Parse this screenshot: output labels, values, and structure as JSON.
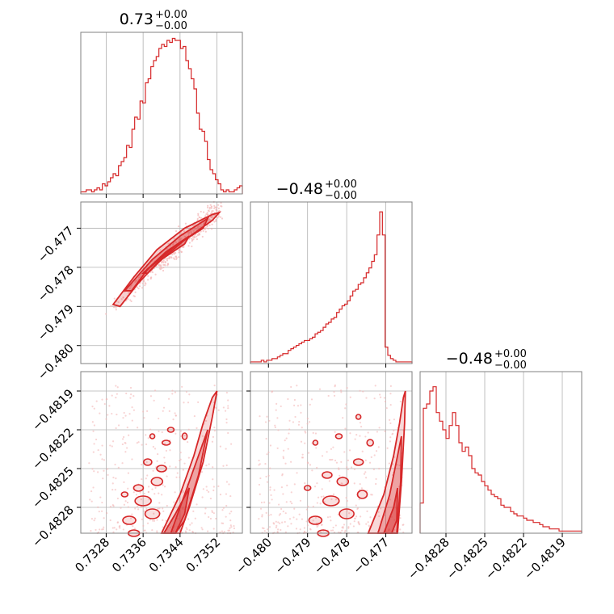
{
  "chart_data": {
    "type": "corner",
    "color": "#d62728",
    "light_color": "#f4b8b8",
    "grid": true,
    "parameters": [
      {
        "title_value": "0.73",
        "title_plus": "+0.00",
        "title_minus": "−0.00",
        "range": [
          0.73225,
          0.73575
        ],
        "ticks": [
          0.7328,
          0.7336,
          0.7344,
          0.7352
        ],
        "tick_labels": [
          "0.7328",
          "0.7336",
          "0.7344",
          "0.7352"
        ],
        "hist_edges": [
          0.73225,
          0.73575
        ],
        "hist_counts": [
          1,
          1,
          2,
          2,
          1,
          2,
          3,
          2,
          5,
          4,
          6,
          8,
          10,
          9,
          14,
          16,
          18,
          24,
          23,
          32,
          38,
          37,
          46,
          45,
          55,
          57,
          63,
          66,
          68,
          72,
          74,
          73,
          76,
          75,
          77,
          76,
          76,
          72,
          73,
          66,
          62,
          57,
          52,
          40,
          32,
          31,
          26,
          17,
          12,
          10,
          7,
          5,
          2,
          1,
          2,
          1,
          1,
          2,
          3,
          4
        ],
        "hist_ymax": 80
      },
      {
        "title_value": "−0.48",
        "title_plus": "+0.00",
        "title_minus": "−0.00",
        "range": [
          -0.48046,
          -0.47633
        ],
        "ticks": [
          -0.48,
          -0.479,
          -0.478,
          -0.477
        ],
        "tick_labels": [
          "−0.480",
          "−0.479",
          "−0.478",
          "−0.477"
        ],
        "hist_edges": [
          -0.48046,
          -0.47633
        ],
        "hist_counts": [
          1,
          1,
          1,
          1,
          2,
          1,
          2,
          2,
          3,
          3,
          4,
          5,
          6,
          6,
          8,
          9,
          10,
          11,
          12,
          13,
          14,
          14,
          15,
          16,
          18,
          19,
          20,
          22,
          24,
          25,
          27,
          28,
          31,
          33,
          35,
          36,
          38,
          41,
          44,
          45,
          48,
          49,
          52,
          55,
          58,
          62,
          66,
          78,
          92,
          78,
          10,
          5,
          3,
          2,
          1,
          1,
          1,
          1,
          1,
          1
        ],
        "hist_ymax": 98
      },
      {
        "title_value": "−0.48",
        "title_plus": "+0.00",
        "title_minus": "−0.00",
        "range": [
          -0.483,
          -0.48175
        ],
        "ticks": [
          -0.4828,
          -0.4825,
          -0.4822,
          -0.4819
        ],
        "tick_labels": [
          "−0.4828",
          "−0.4825",
          "−0.4822",
          "−0.4819"
        ],
        "hist_edges": [
          -0.483,
          -0.48175
        ],
        "hist_counts": [
          14,
          58,
          60,
          66,
          68,
          56,
          52,
          48,
          44,
          50,
          56,
          50,
          42,
          38,
          40,
          36,
          30,
          28,
          27,
          24,
          22,
          20,
          18,
          17,
          16,
          13,
          12,
          12,
          10,
          9,
          8,
          8,
          7,
          6,
          6,
          5,
          5,
          4,
          3,
          3,
          2,
          2,
          2,
          1,
          1,
          1,
          1,
          1,
          1,
          1
        ],
        "hist_ymax": 75
      }
    ]
  }
}
